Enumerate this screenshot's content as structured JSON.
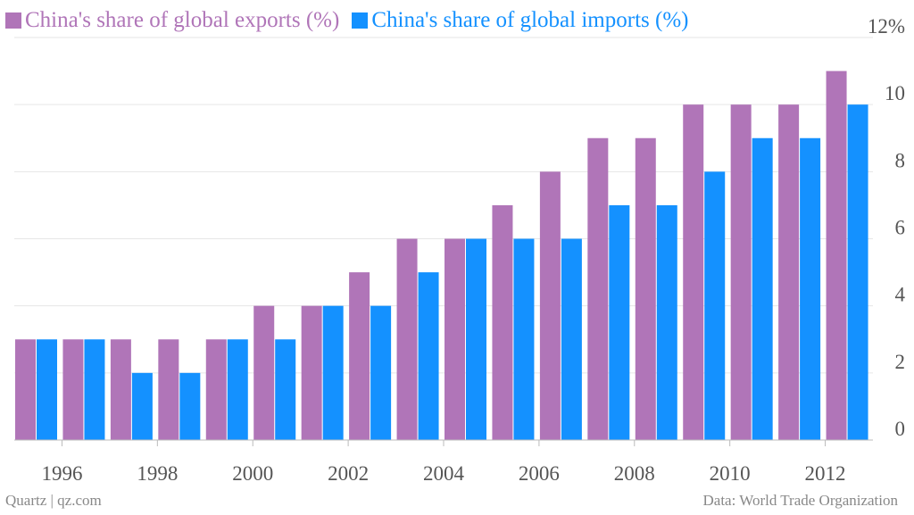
{
  "colors": {
    "exports": "#b075b8",
    "imports": "#1491ff",
    "grid": "#e6e6e6",
    "axis_text": "#555555",
    "footer_text": "#888888"
  },
  "legend": [
    {
      "label": "China's share of global exports (%)",
      "color": "#b075b8"
    },
    {
      "label": "China's share of global imports (%)",
      "color": "#1491ff"
    }
  ],
  "footer": {
    "source_left": "Quartz | qz.com",
    "source_right": "Data: World Trade Organization"
  },
  "chart_data": {
    "type": "bar",
    "categories": [
      "1995",
      "1996",
      "1997",
      "1998",
      "1999",
      "2000",
      "2001",
      "2002",
      "2003",
      "2004",
      "2005",
      "2006",
      "2007",
      "2008",
      "2009",
      "2010",
      "2011",
      "2012"
    ],
    "series": [
      {
        "name": "China's share of global exports (%)",
        "values": [
          3,
          3,
          3,
          3,
          3,
          4,
          4,
          5,
          6,
          6,
          7,
          8,
          9,
          9,
          10,
          10,
          10,
          11
        ]
      },
      {
        "name": "China's share of global imports (%)",
        "values": [
          3,
          3,
          2,
          2,
          3,
          3,
          4,
          4,
          5,
          6,
          6,
          6,
          7,
          7,
          8,
          9,
          9,
          10
        ]
      }
    ],
    "x_tick_labels": [
      "1996",
      "1998",
      "2000",
      "2002",
      "2004",
      "2006",
      "2008",
      "2010",
      "2012"
    ],
    "y_tick_labels": [
      "0",
      "2",
      "4",
      "6",
      "8",
      "10",
      "12%"
    ],
    "ylim": [
      0,
      12
    ],
    "y_axis_position": "right",
    "grid": true,
    "legend_position": "top-left"
  }
}
